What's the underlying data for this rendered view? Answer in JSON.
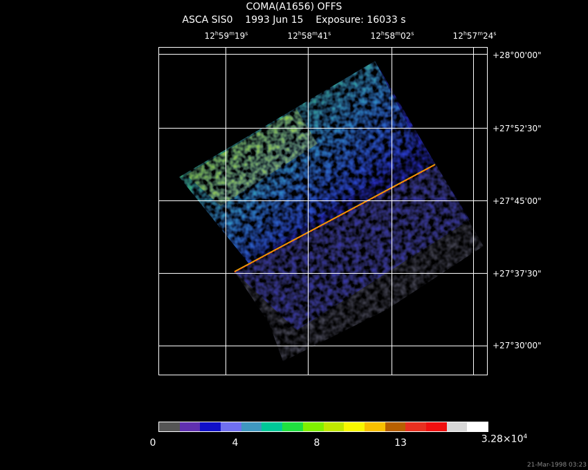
{
  "header": {
    "title": "COMA(A1656) OFFS",
    "instrument": "ASCA SIS0",
    "date": "1993 Jun 15",
    "exposure": "Exposure: 16033 s"
  },
  "axes": {
    "ra_ticks": [
      {
        "h": "12",
        "m": "59",
        "s": "19"
      },
      {
        "h": "12",
        "m": "58",
        "s": "41"
      },
      {
        "h": "12",
        "m": "58",
        "s": "02"
      },
      {
        "h": "12",
        "m": "57",
        "s": "24"
      }
    ],
    "dec_ticks": [
      "+28°00'00\"",
      "+27°52'30\"",
      "+27°45'00\"",
      "+27°37'30\"",
      "+27°30'00\""
    ]
  },
  "colorbar": {
    "labels": [
      "0",
      "4",
      "8",
      "13"
    ],
    "max_label_mantissa": "3.28×10",
    "max_label_exp": "4",
    "colors": [
      "#555555",
      "#6030b0",
      "#1010c8",
      "#7070f0",
      "#4098c0",
      "#00c898",
      "#20e040",
      "#80f000",
      "#c0e800",
      "#f8f800",
      "#f8c000",
      "#b86000",
      "#e83020",
      "#f01010",
      "#d8d8d8",
      "#ffffff"
    ]
  },
  "footer": {
    "timestamp": "21-Mar-1998 03:23"
  }
}
